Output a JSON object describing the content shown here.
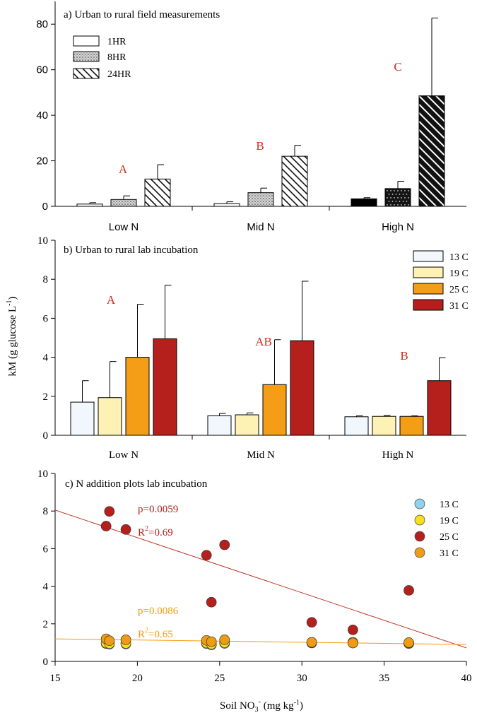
{
  "colors": {
    "letter": "#d42b1e",
    "line25": "#c0392b",
    "line31": "#f39c12",
    "c13": "#f1f7fc",
    "c19": "#fdf2b3",
    "c25": "#f49d16",
    "c31": "#b51f1c",
    "sc13": "#8fd3ee",
    "sc19": "#f7e01a",
    "sc25": "#b51f1c",
    "sc31": "#ef9c13"
  },
  "chart_data": [
    {
      "type": "bar",
      "title": "a) Urban to rural field measurements",
      "categories": [
        "Low N",
        "Mid N",
        "High N"
      ],
      "ylim": [
        0,
        90
      ],
      "yticks": [
        0,
        20,
        40,
        60,
        80
      ],
      "series": [
        {
          "name": "1HR",
          "values": [
            1.0,
            1.2,
            3.3
          ],
          "errors": [
            0.6,
            0.8,
            0.5
          ]
        },
        {
          "name": "8HR",
          "values": [
            3.0,
            6.0,
            7.8
          ],
          "errors": [
            1.6,
            2.0,
            3.2
          ]
        },
        {
          "name": "24HR",
          "values": [
            12.0,
            22.0,
            48.5
          ],
          "errors": [
            6.3,
            4.8,
            34.2
          ]
        }
      ],
      "letters": [
        "A",
        "B",
        "C"
      ]
    },
    {
      "type": "bar",
      "title": "b) Urban to rural lab incubation",
      "ylabel": "kM (g glucose L",
      "ylabel_sup": "-1",
      "categories": [
        "Low N",
        "Mid N",
        "High N"
      ],
      "ylim": [
        0,
        10
      ],
      "yticks": [
        0,
        2,
        4,
        6,
        8,
        10
      ],
      "series": [
        {
          "name": "13 C",
          "values": [
            1.7,
            1.0,
            0.95
          ],
          "errors": [
            1.1,
            0.12,
            0.05
          ]
        },
        {
          "name": "19 C",
          "values": [
            1.93,
            1.05,
            0.97
          ],
          "errors": [
            1.85,
            0.1,
            0.05
          ]
        },
        {
          "name": "25 C",
          "values": [
            4.0,
            2.6,
            0.97
          ],
          "errors": [
            2.72,
            2.3,
            0.03
          ]
        },
        {
          "name": "31 C",
          "values": [
            4.95,
            4.85,
            2.8
          ],
          "errors": [
            2.75,
            3.05,
            1.18
          ]
        }
      ],
      "letters": [
        "A",
        "AB",
        "B"
      ]
    },
    {
      "type": "scatter",
      "title": "c) N addition plots lab incubation",
      "xlabel": "Soil NO",
      "xlabel_sub": "3",
      "xlabel_sup": "-",
      "xlabel_tail": " (mg kg",
      "xlabel_sup2": "-1",
      "xlabel_end": ")",
      "xlim": [
        15,
        40
      ],
      "ylim": [
        0,
        10
      ],
      "xticks": [
        15,
        20,
        25,
        30,
        35,
        40
      ],
      "yticks": [
        0,
        2,
        4,
        6,
        8,
        10
      ],
      "series": [
        {
          "name": "13 C",
          "x": [
            18.1,
            18.3,
            19.3,
            24.2,
            24.5,
            25.3,
            30.6,
            33.1,
            36.5
          ],
          "y": [
            0.95,
            0.92,
            0.93,
            0.95,
            0.88,
            0.96,
            0.98,
            0.98,
            0.95
          ]
        },
        {
          "name": "19 C",
          "x": [
            18.1,
            18.3,
            19.3,
            24.2,
            24.5,
            25.3,
            30.6,
            33.1,
            36.5
          ],
          "y": [
            0.98,
            0.95,
            0.96,
            0.98,
            0.92,
            1.0,
            1.0,
            1.02,
            0.98
          ]
        },
        {
          "name": "25 C",
          "x": [
            18.3,
            18.1,
            19.3,
            24.2,
            24.5,
            25.3,
            30.6,
            33.1,
            36.5
          ],
          "y": [
            7.98,
            7.2,
            7.02,
            5.65,
            3.15,
            6.2,
            2.08,
            1.68,
            3.78
          ]
        },
        {
          "name": "31 C",
          "x": [
            18.1,
            18.3,
            19.3,
            24.2,
            24.5,
            25.3,
            30.6,
            33.1,
            36.5
          ],
          "y": [
            1.2,
            1.1,
            1.15,
            1.12,
            1.05,
            1.15,
            1.02,
            0.98,
            1.0
          ]
        }
      ],
      "fits": [
        {
          "name": "25 C",
          "p": "p=0.0059",
          "r2_label": "R",
          "r2_sup": "2",
          "r2_value": "=0.69",
          "x": [
            15,
            40
          ],
          "y": [
            8.05,
            0.72
          ]
        },
        {
          "name": "31 C",
          "p": "p=0.0086",
          "r2_label": "R",
          "r2_sup": "2",
          "r2_value": "=0.65",
          "x": [
            15,
            40
          ],
          "y": [
            1.2,
            0.9
          ]
        }
      ]
    }
  ]
}
